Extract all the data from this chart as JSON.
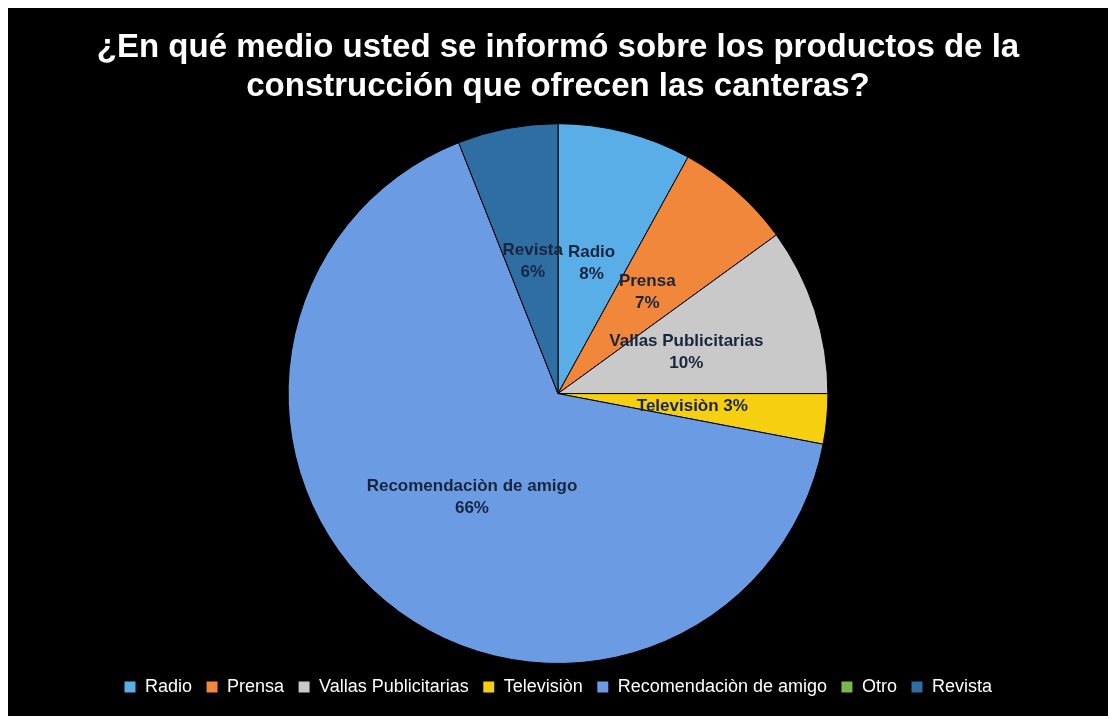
{
  "chart_data": {
    "type": "pie",
    "title": "¿En qué medio usted se informó sobre los productos de la construcción que ofrecen las canteras?",
    "categories": [
      "Radio",
      "Prensa",
      "Vallas Publicitarias",
      "Televisiòn",
      "Recomendaciòn de amigo",
      "Otro",
      "Revista"
    ],
    "values": [
      8,
      7,
      10,
      3,
      66,
      0,
      6
    ],
    "value_labels": [
      "8%",
      "7%",
      "10%",
      "3%",
      "66%",
      null,
      "6%"
    ],
    "colors": [
      "#5aaee8",
      "#f0873a",
      "#c9c9c9",
      "#f5cf10",
      "#6b9ce3",
      "#7ab648",
      "#2f6ea3"
    ],
    "legend": "bottom"
  }
}
